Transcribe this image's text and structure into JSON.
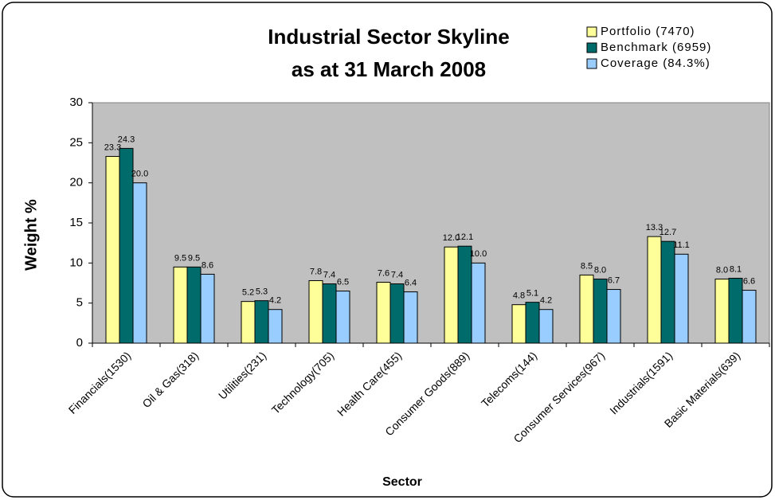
{
  "chart_data": {
    "type": "bar",
    "title": "Industrial Sector Skyline",
    "subtitle": "as at 31 March 2008",
    "x_label": "Sector",
    "y_label": "Weight %",
    "categories": [
      "Financials(1530)",
      "Oil & Gas(318)",
      "Utilities(231)",
      "Technology(705)",
      "Health Care(455)",
      "Consumer Goods(889)",
      "Telecoms(144)",
      "Consumer Services(967)",
      "Industrials(1591)",
      "Basic Materials(639)"
    ],
    "series": [
      {
        "name": "Portfolio (7470)",
        "color": "#ffff99",
        "values": [
          23.3,
          9.5,
          5.2,
          7.8,
          7.6,
          12.0,
          4.8,
          8.5,
          13.3,
          8.0
        ],
        "value_labels": [
          "23.3",
          "9.5",
          "5.2",
          "7.8",
          "7.6",
          "12.0",
          "4.8",
          "8.5",
          "13.3",
          "8.0"
        ]
      },
      {
        "name": "Benchmark (6959)",
        "color": "#006b6b",
        "values": [
          24.3,
          9.5,
          5.3,
          7.4,
          7.4,
          12.1,
          5.1,
          8.0,
          12.7,
          8.1
        ],
        "value_labels": [
          "24.3",
          "9.5",
          "5.3",
          "7.4",
          "7.4",
          "12.1",
          "5.1",
          "8.0",
          "12.7",
          "8.1"
        ]
      },
      {
        "name": "Coverage (84.3%)",
        "color": "#99ccff",
        "values": [
          20.0,
          8.6,
          4.2,
          6.5,
          6.4,
          10.0,
          4.2,
          6.7,
          11.1,
          6.6
        ],
        "value_labels": [
          "20.0",
          "8.6",
          "4.2",
          "6.5",
          "6.4",
          "10.0",
          "4.2",
          "6.7",
          "11.1",
          "6.6"
        ]
      }
    ],
    "ylim": [
      0,
      30
    ],
    "yticks": [
      0,
      5,
      10,
      15,
      20,
      25,
      30
    ],
    "legend": "top-right",
    "plot_background": "#c0c0c0"
  }
}
